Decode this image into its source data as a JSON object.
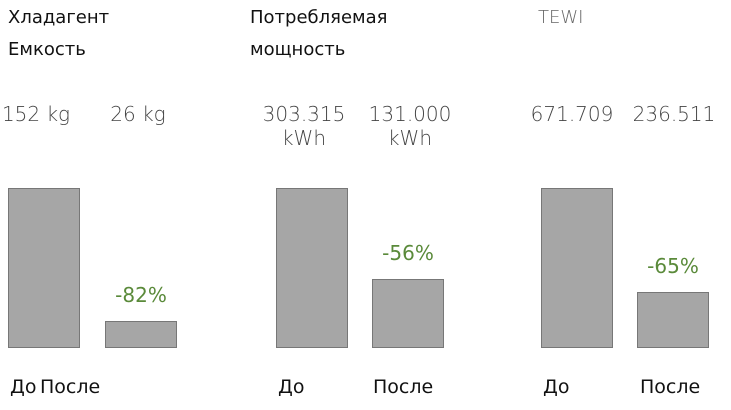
{
  "chart_data": [
    {
      "type": "bar",
      "title": [
        "Хладагент",
        "Емкость"
      ],
      "categories": [
        "До",
        "После"
      ],
      "values": [
        152,
        26
      ],
      "value_labels": [
        "152 kg",
        "26 kg"
      ],
      "annotation": "-82%",
      "color": "#a6a6a6"
    },
    {
      "type": "bar",
      "title": [
        "Потребляемая",
        "мощность"
      ],
      "categories": [
        "До",
        "После"
      ],
      "values": [
        303.315,
        131
      ],
      "value_labels": [
        "303.315 kWh",
        "131.000 kWh"
      ],
      "annotation": "-56%",
      "color": "#a6a6a6"
    },
    {
      "type": "bar",
      "title": [
        "TEWI"
      ],
      "categories": [
        "До",
        "После"
      ],
      "values": [
        671.709,
        236.511
      ],
      "value_labels": [
        "671.709",
        "236.511"
      ],
      "annotation": "-65%",
      "color": "#a6a6a6"
    }
  ]
}
